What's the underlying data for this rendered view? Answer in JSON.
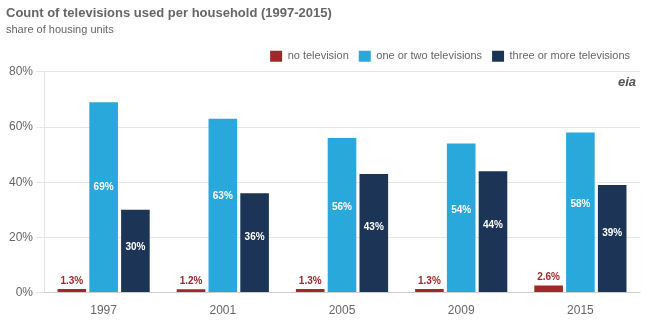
{
  "chart_data": {
    "type": "bar",
    "title": "Count of televisions used per household (1997-2015)",
    "subtitle": "share of housing units",
    "annotation": "eia",
    "categories": [
      "1997",
      "2001",
      "2005",
      "2009",
      "2015"
    ],
    "series": [
      {
        "name": "no television",
        "color": "#A0282A",
        "values": [
          1.3,
          1.2,
          1.3,
          1.3,
          2.6
        ],
        "value_labels": [
          "1.3%",
          "1.2%",
          "1.3%",
          "1.3%",
          "2.6%"
        ]
      },
      {
        "name": "one or two televisions",
        "color": "#29A8DC",
        "values": [
          69,
          63,
          56,
          54,
          58
        ],
        "value_labels": [
          "69%",
          "63%",
          "56%",
          "54%",
          "58%"
        ]
      },
      {
        "name": "three or more televisions",
        "color": "#1C3557",
        "values": [
          30,
          36,
          43,
          44,
          39
        ],
        "value_labels": [
          "30%",
          "36%",
          "43%",
          "44%",
          "39%"
        ]
      }
    ],
    "ylim": [
      0,
      80
    ],
    "yticks": [
      {
        "value": 0,
        "label": "0%"
      },
      {
        "value": 20,
        "label": "20%"
      },
      {
        "value": 40,
        "label": "40%"
      },
      {
        "value": 60,
        "label": "60%"
      },
      {
        "value": 80,
        "label": "80%"
      }
    ],
    "grid": true,
    "legend": "upper right",
    "data_labels": true
  }
}
